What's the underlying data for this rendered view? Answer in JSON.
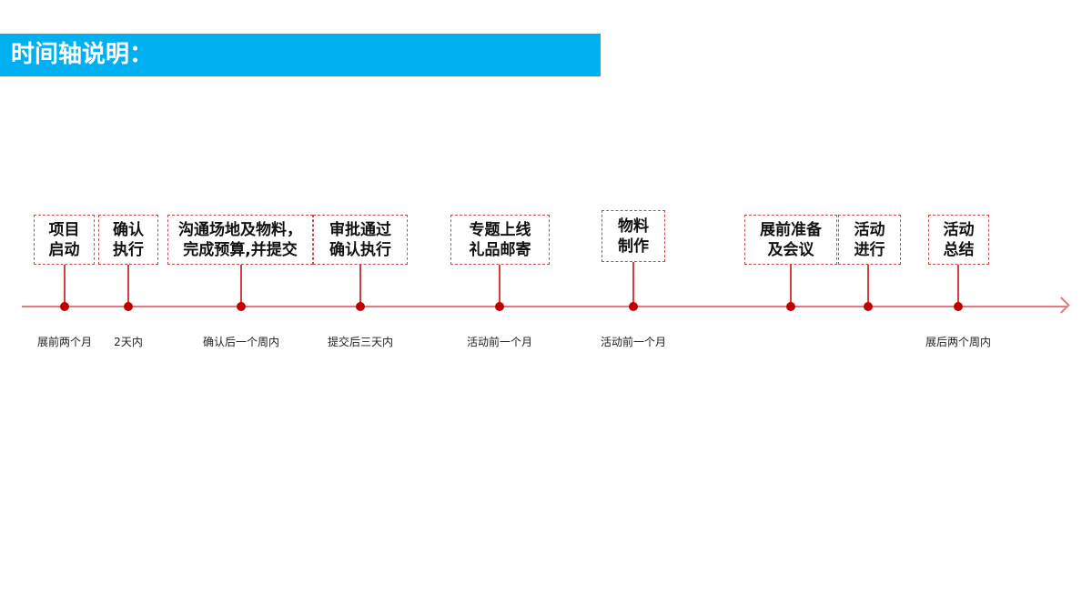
{
  "title": "时间轴说明：",
  "colors": {
    "title_bar": "#00b0f0",
    "axis": "#e07c80",
    "dot": "#c00000",
    "box_border": "#c0504d"
  },
  "milestones": [
    {
      "text": "项目\n启动",
      "time": "展前两个月"
    },
    {
      "text": "确认\n执行",
      "time": "2天内"
    },
    {
      "text": "沟通场地及物料，\n完成预算,并提交",
      "time": "确认后一个周内"
    },
    {
      "text": "审批通过\n确认执行",
      "time": "提交后三天内"
    },
    {
      "text": "专题上线\n礼品邮寄",
      "time": "活动前一个月"
    },
    {
      "text": "物料\n制作",
      "time": "活动前一个月"
    },
    {
      "text": "展前准备\n及会议",
      "time": ""
    },
    {
      "text": "活动\n进行",
      "time": ""
    },
    {
      "text": "活动\n总结",
      "time": "展后两个周内"
    }
  ]
}
